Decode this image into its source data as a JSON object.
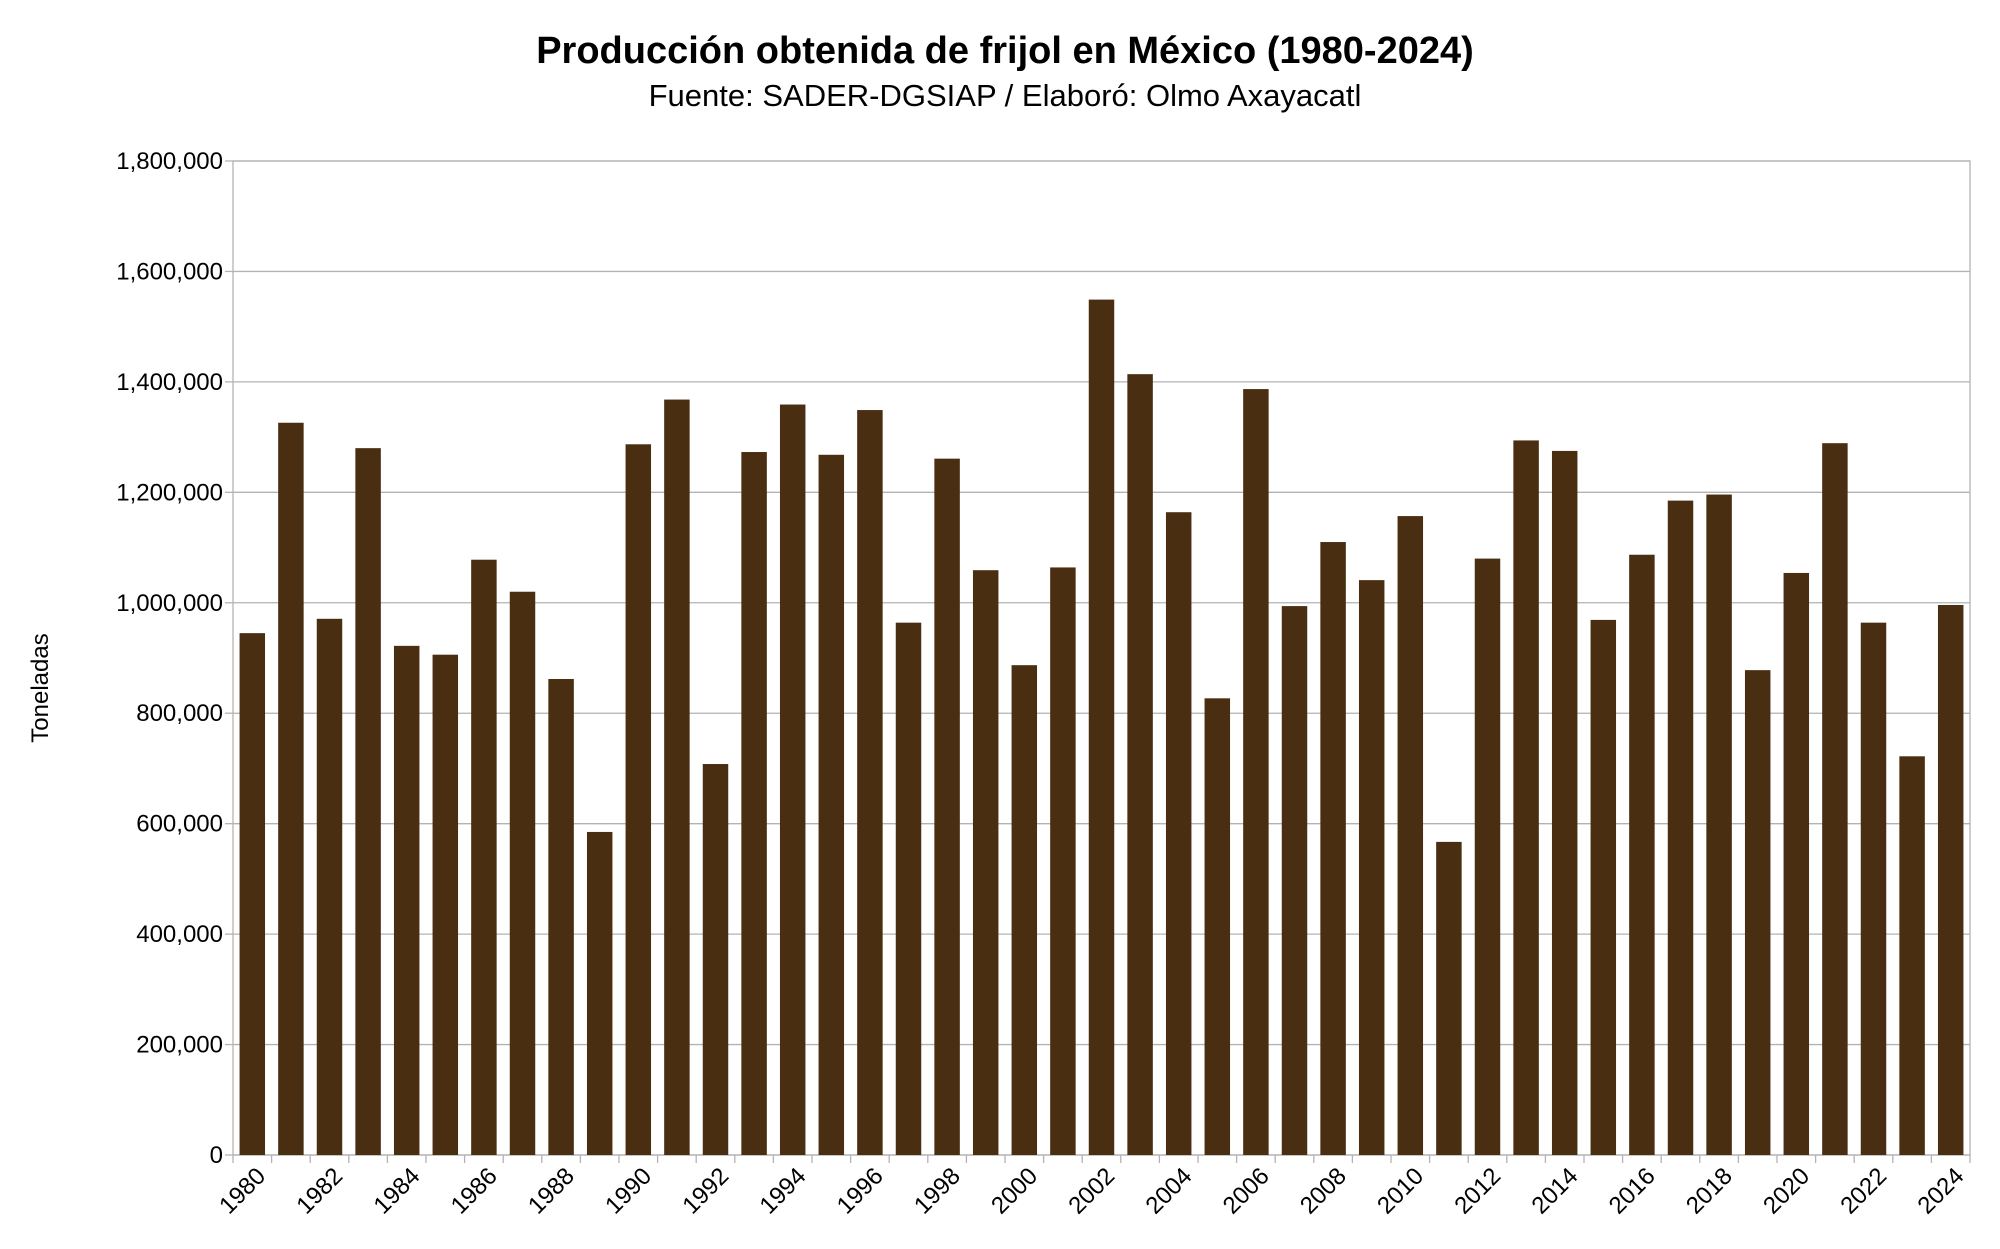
{
  "chart_data": {
    "type": "bar",
    "title": "Producción obtenida de frijol en México (1980-2024)",
    "subtitle": "Fuente: SADER-DGSIAP / Elaboró: Olmo Axayacatl",
    "xlabel": "",
    "ylabel": "Toneladas",
    "ylim": [
      0,
      1800000
    ],
    "yticks": [
      "0",
      "200,000",
      "400,000",
      "600,000",
      "800,000",
      "1,000,000",
      "1,200,000",
      "1,400,000",
      "1,600,000",
      "1,800,000"
    ],
    "grid": true,
    "bar_color": "#4a2e12",
    "categories": [
      1980,
      1981,
      1982,
      1983,
      1984,
      1985,
      1986,
      1987,
      1988,
      1989,
      1990,
      1991,
      1992,
      1993,
      1994,
      1995,
      1996,
      1997,
      1998,
      1999,
      2000,
      2001,
      2002,
      2003,
      2004,
      2005,
      2006,
      2007,
      2008,
      2009,
      2010,
      2011,
      2012,
      2013,
      2014,
      2015,
      2016,
      2017,
      2018,
      2019,
      2020,
      2021,
      2022,
      2023,
      2024
    ],
    "xtick_labels": [
      "1980",
      "1982",
      "1984",
      "1986",
      "1988",
      "1990",
      "1992",
      "1994",
      "1996",
      "1998",
      "2000",
      "2002",
      "2004",
      "2006",
      "2008",
      "2010",
      "2012",
      "2014",
      "2016",
      "2018",
      "2020",
      "2022",
      "2024"
    ],
    "values": [
      945000,
      1326000,
      971000,
      1280000,
      922000,
      906000,
      1078000,
      1020000,
      862000,
      585000,
      1287000,
      1368000,
      708000,
      1273000,
      1359000,
      1268000,
      1349000,
      964000,
      1261000,
      1059000,
      887000,
      1064000,
      1549000,
      1414000,
      1164000,
      827000,
      1387000,
      994000,
      1110000,
      1041000,
      1157000,
      567000,
      1080000,
      1294000,
      1275000,
      969000,
      1087000,
      1185000,
      1196000,
      878000,
      1054000,
      1289000,
      964000,
      722000,
      996000
    ]
  }
}
